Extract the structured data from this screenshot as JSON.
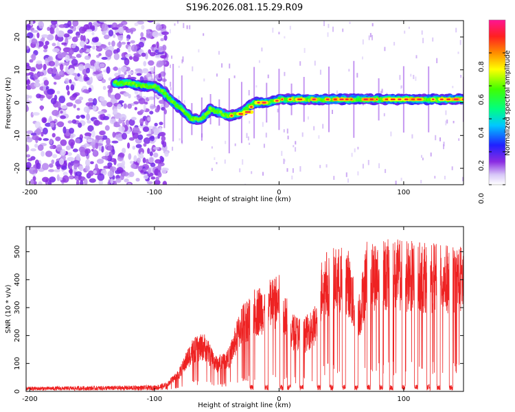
{
  "chart_data": [
    {
      "type": "heatmap",
      "title": "S196.2026.081.15.29.R09",
      "xlabel": "Height of straight line (km)",
      "ylabel": "Frequency (Hz)",
      "xlim": [
        -203,
        148
      ],
      "ylim": [
        -25,
        25
      ],
      "x_ticks": [
        -200,
        -100,
        0,
        100
      ],
      "y_ticks": [
        -20,
        -10,
        0,
        10,
        20
      ],
      "x_tick_labels": [
        "-200",
        "-100",
        "0",
        "100"
      ],
      "y_tick_labels": [
        "-20",
        "-10",
        "0",
        "10",
        "20"
      ],
      "colorbar": {
        "label": "Normalized spectral amplitude",
        "range": [
          0,
          1
        ],
        "ticks": [
          0,
          0.2,
          0.4,
          0.6,
          0.8
        ],
        "tick_labels": [
          "0.0",
          "0.2",
          "0.4",
          "0.6",
          "0.8"
        ]
      },
      "ridge": {
        "x": [
          -130,
          -120,
          -110,
          -100,
          -92,
          -85,
          -78,
          -70,
          -62,
          -55,
          -48,
          -40,
          -30,
          -20,
          -10,
          0,
          10,
          20,
          40,
          60,
          80,
          100,
          120,
          148
        ],
        "freq": [
          6,
          6,
          5,
          5,
          3,
          0,
          -2,
          -5,
          -5,
          -2,
          -3,
          -4,
          -3,
          0,
          0,
          1,
          1,
          1,
          1,
          1,
          1,
          1,
          1,
          1
        ]
      },
      "noise_region_x": [
        -203,
        -90
      ]
    },
    {
      "type": "line",
      "xlabel": "Height of straight line (km)",
      "ylabel": "SNR (10 * v/v)",
      "xlim": [
        -203,
        148
      ],
      "ylim": [
        0,
        590
      ],
      "x_ticks": [
        -200,
        -100,
        0,
        100
      ],
      "y_ticks": [
        0,
        100,
        200,
        300,
        400,
        500
      ],
      "x_tick_labels": [
        "-200",
        "-100",
        "0",
        "100"
      ],
      "y_tick_labels": [
        "0",
        "100",
        "200",
        "300",
        "400",
        "500"
      ],
      "color": "#ee2222",
      "envelope": {
        "x": [
          -203,
          -100,
          -90,
          -80,
          -70,
          -60,
          -50,
          -40,
          -30,
          -20,
          -10,
          0,
          10,
          20,
          30,
          35,
          45,
          55,
          60,
          65,
          70,
          80,
          90,
          100,
          110,
          120,
          130,
          140,
          148
        ],
        "snr": [
          15,
          20,
          30,
          80,
          180,
          200,
          120,
          150,
          300,
          350,
          380,
          400,
          270,
          250,
          300,
          480,
          490,
          500,
          380,
          350,
          520,
          520,
          520,
          520,
          510,
          510,
          500,
          500,
          500
        ]
      },
      "dropouts_x": [
        -22,
        -10,
        2,
        8,
        18,
        32,
        42,
        52,
        62,
        72,
        82,
        90,
        100,
        110,
        120,
        128,
        138
      ]
    }
  ]
}
